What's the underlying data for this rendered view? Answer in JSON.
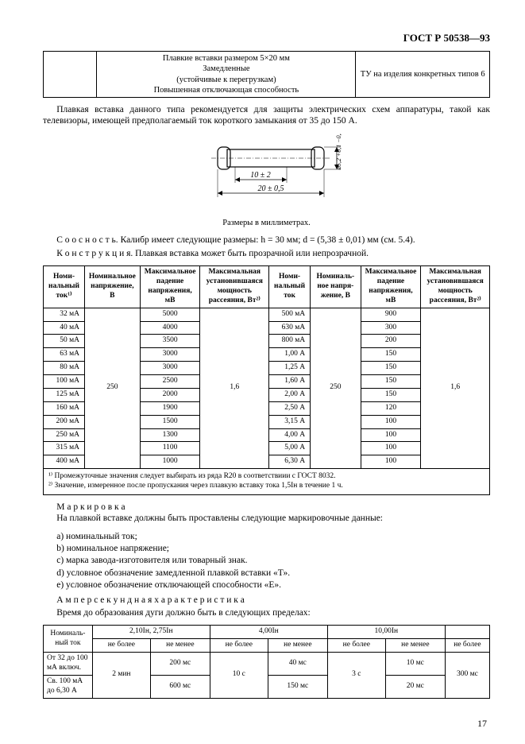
{
  "doc_code": "ГОСТ Р 50538—93",
  "header_box": {
    "col1_lines": [
      "Плавкие вставки размером 5×20 мм",
      "Замедленные",
      "(устойчивые к перегрузкам)",
      "Повышенная отключающая способность"
    ],
    "col2": "ТУ на изделия конкретных типов 6"
  },
  "intro_paragraph": "Плавкая вставка данного типа рекомендуется для защиты электрических схем аппаратуры, такой как телевизоры, имеющей предполагаемый ток короткого замыкания от 35 до 150 А.",
  "figure": {
    "dim_top": "10 ± 2",
    "dim_bottom": "20 ± 0,5",
    "dim_right": "⌀5,2 +0,1 −0,2",
    "caption": "Размеры в миллиметрах."
  },
  "soosnost_label": "С о о с н о с т ь.",
  "soosnost_text": "Калибр имеет следующие размеры: h = 30 мм; d = (5,38 ± 0,01) мм (см. 5.4).",
  "konstr_label": "К о н с т р у к ц и я.",
  "konstr_text": "Плавкая вставка может быть прозрачной или непрозрачной.",
  "data_table": {
    "headers": [
      "Номи-\nнальный\nток¹⁾",
      "Номинальное\nнапряжение,\nВ",
      "Максимальное\nпадение\nнапряжения,\nмВ",
      "Максимальная\nустановившаяся\nмощность\nрассеяния, Вт²⁾",
      "Номи-\nнальный\nток",
      "Номиналь-\nное напря-\nжение, В",
      "Максимальное\nпадение\nнапряжения,\nмВ",
      "Максимальная\nустановившаяся\nмощность\nрассеяния, Вт²⁾"
    ],
    "left_currents": [
      "32 мА",
      "40 мА",
      "50 мА",
      "63 мА",
      "80 мА",
      "100 мА",
      "125 мА",
      "160 мА",
      "200 мА",
      "250 мА",
      "315 мА",
      "400 мА"
    ],
    "left_voltage": "250",
    "left_drops": [
      "5000",
      "4000",
      "3500",
      "3000",
      "3000",
      "2500",
      "2000",
      "1900",
      "1500",
      "1300",
      "1100",
      "1000"
    ],
    "left_power": "1,6",
    "right_currents": [
      "500 мА",
      "630 мА",
      "800 мА",
      "1,00 А",
      "1,25 А",
      "1,60 А",
      "2,00 А",
      "2,50 А",
      "3,15 А",
      "4,00 А",
      "5,00 А",
      "6,30 А"
    ],
    "right_voltage": "250",
    "right_drops": [
      "900",
      "300",
      "200",
      "150",
      "150",
      "150",
      "150",
      "120",
      "100",
      "100",
      "100",
      "100"
    ],
    "right_power": "1,6",
    "footnote1": "¹⁾ Промежуточные значения следует выбирать из ряда R20 в соответствиии с ГОСТ 8032.",
    "footnote2": "²⁾ Значение, измеренное после пропускания через плавкую вставку тока 1,5Iн в течение 1 ч."
  },
  "marking_label": "М а р к и р о в к а",
  "marking_intro": "На плавкой вставке должны быть проставлены следующие маркировочные данные:",
  "marking_items": [
    "a) номинальный ток;",
    "b) номинальное напряжение;",
    "c) марка завода-изготовителя или товарный знак.",
    "d) условное обозначение замедленной плавкой вставки «Т».",
    "e) условное обозначение отключающей способности «Е»."
  ],
  "amp_label": "А м п е р с е к у н д н а я   х а р а к т е р и с т и к а",
  "amp_text": "Время до образования дуги должно быть в следующих пределах:",
  "time_table": {
    "col_nominal": "Номиналь-\nный ток",
    "mult1": "2,10Iн, 2,75Iн",
    "mult2": "4,00Iн",
    "mult3": "10,00Iн",
    "sub_nb": "не более",
    "sub_nm": "не менее",
    "row1_label": "От 32 до 100 мА включ.",
    "row2_label": "Св. 100 мА до 6,30 А",
    "col_2min": "2 мин",
    "r1_nm1": "200 мс",
    "r2_nm1": "600 мс",
    "col_10c": "10 с",
    "r1_nm2": "40 мс",
    "r2_nm2": "150 мс",
    "col_3c": "3 с",
    "r1_nm3": "10 мс",
    "r2_nm3": "20 мс",
    "col_300ms": "300 мс"
  },
  "page_number": "17"
}
